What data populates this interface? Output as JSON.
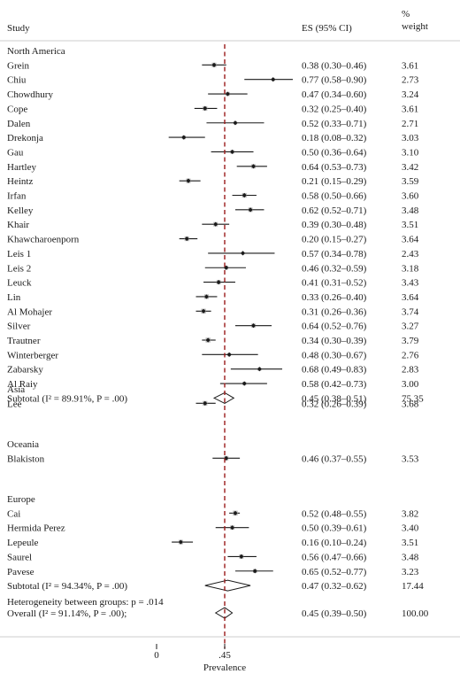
{
  "chart_data": {
    "type": "forest",
    "headers": {
      "study": "Study",
      "es": "ES (95% CI)",
      "weight_pct": "%",
      "weight_word": "weight"
    },
    "xlabel": "Prevalence",
    "xticks": [
      {
        "value": 0,
        "label": "0"
      },
      {
        "value": 0.45,
        "label": ".45"
      }
    ],
    "reference_line": 0.45,
    "xlim": [
      -0.05,
      1.0
    ],
    "groups": [
      {
        "name": "North America",
        "studies": [
          {
            "name": "Grein",
            "es": 0.38,
            "lo": 0.3,
            "hi": 0.46,
            "ci": "0.38 (0.30–0.46)",
            "weight": "3.61"
          },
          {
            "name": "Chiu",
            "es": 0.77,
            "lo": 0.58,
            "hi": 0.9,
            "ci": "0.77 (0.58–0.90)",
            "weight": "2.73"
          },
          {
            "name": "Chowdhury",
            "es": 0.47,
            "lo": 0.34,
            "hi": 0.6,
            "ci": "0.47 (0.34–0.60)",
            "weight": "3.24"
          },
          {
            "name": "Cope",
            "es": 0.32,
            "lo": 0.25,
            "hi": 0.4,
            "ci": "0.32 (0.25–0.40)",
            "weight": "3.61"
          },
          {
            "name": "Dalen",
            "es": 0.52,
            "lo": 0.33,
            "hi": 0.71,
            "ci": "0.52 (0.33–0.71)",
            "weight": "2.71"
          },
          {
            "name": "Drekonja",
            "es": 0.18,
            "lo": 0.08,
            "hi": 0.32,
            "ci": "0.18 (0.08–0.32)",
            "weight": "3.03"
          },
          {
            "name": "Gau",
            "es": 0.5,
            "lo": 0.36,
            "hi": 0.64,
            "ci": "0.50 (0.36–0.64)",
            "weight": "3.10"
          },
          {
            "name": "Hartley",
            "es": 0.64,
            "lo": 0.53,
            "hi": 0.73,
            "ci": "0.64 (0.53–0.73)",
            "weight": "3.42"
          },
          {
            "name": "Heintz",
            "es": 0.21,
            "lo": 0.15,
            "hi": 0.29,
            "ci": "0.21 (0.15–0.29)",
            "weight": "3.59"
          },
          {
            "name": "Irfan",
            "es": 0.58,
            "lo": 0.5,
            "hi": 0.66,
            "ci": "0.58 (0.50–0.66)",
            "weight": "3.60"
          },
          {
            "name": "Kelley",
            "es": 0.62,
            "lo": 0.52,
            "hi": 0.71,
            "ci": "0.62 (0.52–0.71)",
            "weight": "3.48"
          },
          {
            "name": "Khair",
            "es": 0.39,
            "lo": 0.3,
            "hi": 0.48,
            "ci": "0.39 (0.30–0.48)",
            "weight": "3.51"
          },
          {
            "name": "Khawcharoenporn",
            "es": 0.2,
            "lo": 0.15,
            "hi": 0.27,
            "ci": "0.20 (0.15–0.27)",
            "weight": "3.64"
          },
          {
            "name": "Leis 1",
            "es": 0.57,
            "lo": 0.34,
            "hi": 0.78,
            "ci": "0.57 (0.34–0.78)",
            "weight": "2.43"
          },
          {
            "name": "Leis 2",
            "es": 0.46,
            "lo": 0.32,
            "hi": 0.59,
            "ci": "0.46 (0.32–0.59)",
            "weight": "3.18"
          },
          {
            "name": "Leuck",
            "es": 0.41,
            "lo": 0.31,
            "hi": 0.52,
            "ci": "0.41 (0.31–0.52)",
            "weight": "3.43"
          },
          {
            "name": "Lin",
            "es": 0.33,
            "lo": 0.26,
            "hi": 0.4,
            "ci": "0.33 (0.26–0.40)",
            "weight": "3.64"
          },
          {
            "name": "Al Mohajer",
            "es": 0.31,
            "lo": 0.26,
            "hi": 0.36,
            "ci": "0.31 (0.26–0.36)",
            "weight": "3.74"
          },
          {
            "name": "Silver",
            "es": 0.64,
            "lo": 0.52,
            "hi": 0.76,
            "ci": "0.64 (0.52–0.76)",
            "weight": "3.27"
          },
          {
            "name": "Trautner",
            "es": 0.34,
            "lo": 0.3,
            "hi": 0.39,
            "ci": "0.34 (0.30–0.39)",
            "weight": "3.79"
          },
          {
            "name": "Winterberger",
            "es": 0.48,
            "lo": 0.3,
            "hi": 0.67,
            "ci": "0.48 (0.30–0.67)",
            "weight": "2.76"
          },
          {
            "name": "Zabarsky",
            "es": 0.68,
            "lo": 0.49,
            "hi": 0.83,
            "ci": "0.68 (0.49–0.83)",
            "weight": "2.83"
          },
          {
            "name": "Al Raiy",
            "es": 0.58,
            "lo": 0.42,
            "hi": 0.73,
            "ci": "0.58 (0.42–0.73)",
            "weight": "3.00"
          }
        ],
        "subtotal": {
          "label": "Subtotal  (I² = 89.91%, P = .00)",
          "es": 0.45,
          "lo": 0.38,
          "hi": 0.51,
          "ci": "0.45 (0.38–0.51)",
          "weight": "75.35"
        }
      },
      {
        "name": "Asia",
        "studies": [
          {
            "name": "Lee",
            "es": 0.32,
            "lo": 0.26,
            "hi": 0.39,
            "ci": "0.32 (0.26–0.39)",
            "weight": "3.68"
          }
        ]
      },
      {
        "name": "Oceania",
        "studies": [
          {
            "name": "Blakiston",
            "es": 0.46,
            "lo": 0.37,
            "hi": 0.55,
            "ci": "0.46 (0.37–0.55)",
            "weight": "3.53"
          }
        ]
      },
      {
        "name": "Europe",
        "studies": [
          {
            "name": "Cai",
            "es": 0.52,
            "lo": 0.48,
            "hi": 0.55,
            "ci": "0.52 (0.48–0.55)",
            "weight": "3.82"
          },
          {
            "name": "Hermida Perez",
            "es": 0.5,
            "lo": 0.39,
            "hi": 0.61,
            "ci": "0.50 (0.39–0.61)",
            "weight": "3.40"
          },
          {
            "name": "Lepeule",
            "es": 0.16,
            "lo": 0.1,
            "hi": 0.24,
            "ci": "0.16 (0.10–0.24)",
            "weight": "3.51"
          },
          {
            "name": "Saurel",
            "es": 0.56,
            "lo": 0.47,
            "hi": 0.66,
            "ci": "0.56 (0.47–0.66)",
            "weight": "3.48"
          },
          {
            "name": "Pavese",
            "es": 0.65,
            "lo": 0.52,
            "hi": 0.77,
            "ci": "0.65 (0.52–0.77)",
            "weight": "3.23"
          }
        ],
        "subtotal": {
          "label": "Subtotal  (I² = 94.34%, P = .00)",
          "es": 0.47,
          "lo": 0.32,
          "hi": 0.62,
          "ci": "0.47 (0.32–0.62)",
          "weight": "17.44"
        }
      }
    ],
    "heterogeneity_note": "Heterogeneity between groups: p = .014",
    "overall": {
      "label": "Overall  (I² = 91.14%, P = .00);",
      "es": 0.45,
      "lo": 0.39,
      "hi": 0.5,
      "ci": "0.45 (0.39–0.50)",
      "weight": "100.00"
    },
    "colors": {
      "reference_line": "#9b1b1b",
      "ink": "#1a1a1a",
      "rule": "#bbbbbb"
    }
  }
}
